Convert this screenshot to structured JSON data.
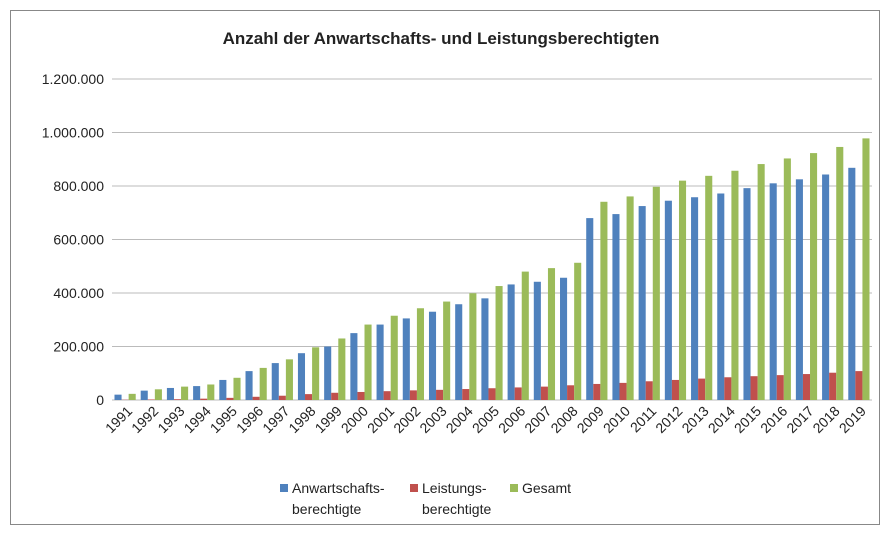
{
  "chart_data": {
    "type": "bar",
    "title": "Anzahl der Anwartschafts- und Leistungsberechtigten",
    "categories": [
      "1991",
      "1992",
      "1993",
      "1994",
      "1995",
      "1996",
      "1997",
      "1998",
      "1999",
      "2000",
      "2001",
      "2002",
      "2003",
      "2004",
      "2005",
      "2006",
      "2007",
      "2008",
      "2009",
      "2010",
      "2011",
      "2012",
      "2013",
      "2014",
      "2015",
      "2016",
      "2017",
      "2018",
      "2019"
    ],
    "series": [
      {
        "name": "Anwartschafts-berechtigte",
        "color": "#4f81bd",
        "values": [
          20000,
          35000,
          45000,
          52000,
          75000,
          108000,
          138000,
          175000,
          200000,
          250000,
          282000,
          305000,
          330000,
          358000,
          380000,
          432000,
          442000,
          457000,
          680000,
          695000,
          725000,
          745000,
          758000,
          772000,
          792000,
          810000,
          825000,
          843000,
          868000
        ]
      },
      {
        "name": "Leistungs-berechtigte",
        "color": "#c0504d",
        "values": [
          1000,
          2000,
          3000,
          5000,
          8000,
          12000,
          16000,
          22000,
          27000,
          30000,
          33000,
          36000,
          38000,
          41000,
          44000,
          47000,
          50000,
          55000,
          60000,
          64000,
          70000,
          75000,
          80000,
          85000,
          89000,
          93000,
          97000,
          102000,
          108000
        ]
      },
      {
        "name": "Gesamt",
        "color": "#9bbb59",
        "values": [
          23000,
          40000,
          50000,
          58000,
          83000,
          120000,
          152000,
          197000,
          230000,
          282000,
          315000,
          343000,
          368000,
          399000,
          426000,
          480000,
          493000,
          513000,
          741000,
          761000,
          797000,
          820000,
          838000,
          857000,
          882000,
          903000,
          923000,
          946000,
          978000
        ]
      }
    ],
    "ylim": [
      0,
      1200000
    ],
    "yticks": [
      0,
      {
        "value": 200000,
        "label": "200.000"
      },
      {
        "value": 400000,
        "label": "400.000"
      },
      {
        "value": 600000,
        "label": "600.000"
      },
      {
        "value": 800000,
        "label": "800.000"
      },
      {
        "value": 1000000,
        "label": "1.000.000"
      },
      {
        "value": 1200000,
        "label": "1.200.000"
      }
    ],
    "grid": true
  }
}
